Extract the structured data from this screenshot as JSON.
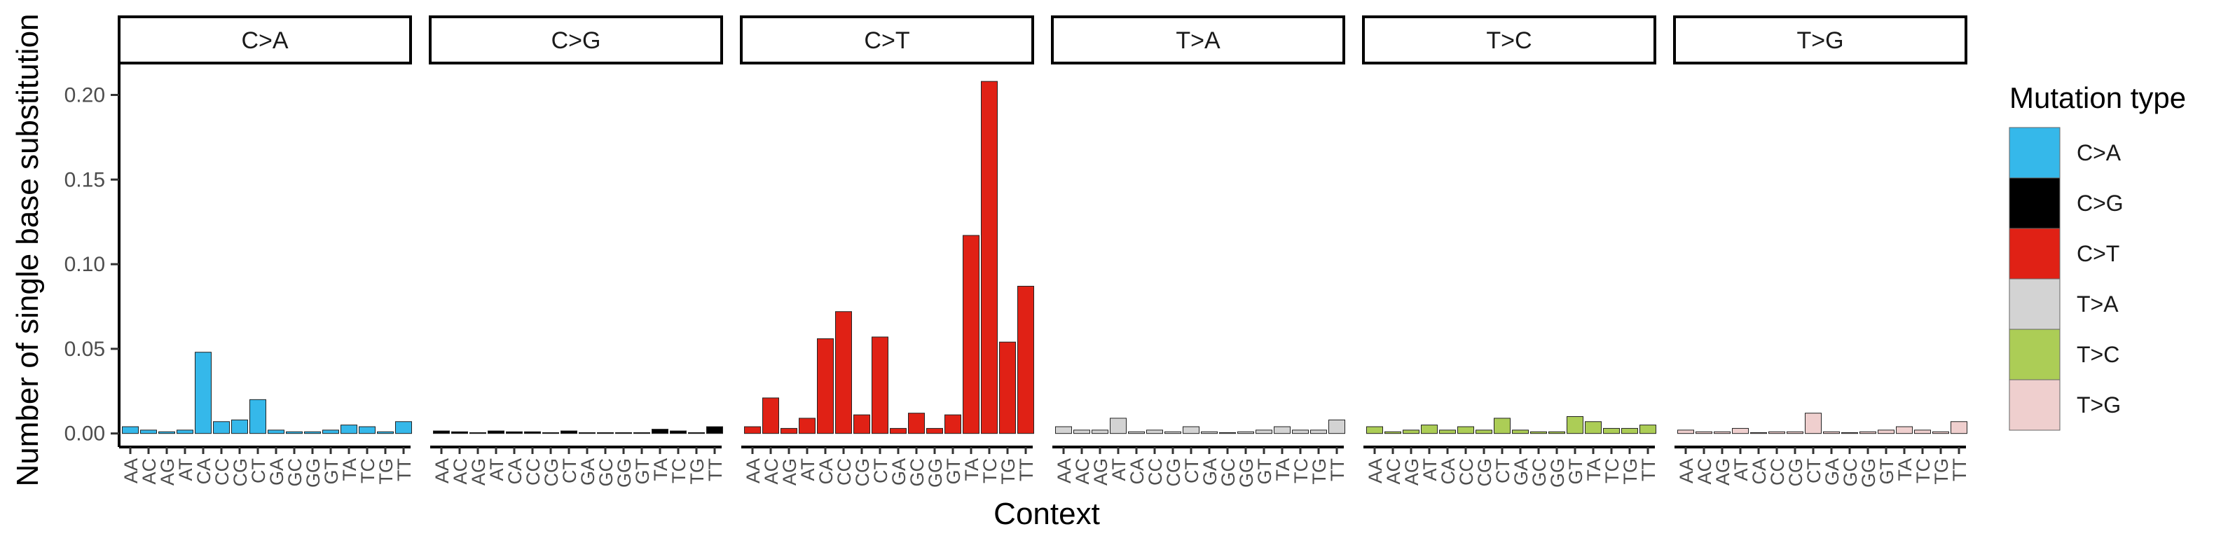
{
  "chart_data": {
    "type": "bar",
    "facets": [
      "C>A",
      "C>G",
      "C>T",
      "T>A",
      "T>C",
      "T>G"
    ],
    "categories": [
      "AA",
      "AC",
      "AG",
      "AT",
      "CA",
      "CC",
      "CG",
      "CT",
      "GA",
      "GC",
      "GG",
      "GT",
      "TA",
      "TC",
      "TG",
      "TT"
    ],
    "series": [
      {
        "name": "C>A",
        "color": "#35B8EA",
        "values": [
          0.004,
          0.002,
          0.001,
          0.002,
          0.048,
          0.007,
          0.008,
          0.02,
          0.002,
          0.001,
          0.001,
          0.002,
          0.005,
          0.004,
          0.001,
          0.007
        ]
      },
      {
        "name": "C>G",
        "color": "#000000",
        "values": [
          0.0015,
          0.001,
          0.0005,
          0.0015,
          0.001,
          0.001,
          0.0005,
          0.0015,
          0.0005,
          0.0005,
          0.0005,
          0.0005,
          0.0025,
          0.0015,
          0.0005,
          0.004
        ]
      },
      {
        "name": "C>T",
        "color": "#E02115",
        "values": [
          0.004,
          0.021,
          0.003,
          0.009,
          0.056,
          0.072,
          0.011,
          0.057,
          0.003,
          0.012,
          0.003,
          0.011,
          0.117,
          0.208,
          0.054,
          0.087
        ]
      },
      {
        "name": "T>A",
        "color": "#D3D3D3",
        "values": [
          0.004,
          0.002,
          0.002,
          0.009,
          0.001,
          0.002,
          0.001,
          0.004,
          0.001,
          0.0005,
          0.001,
          0.002,
          0.004,
          0.002,
          0.002,
          0.008
        ]
      },
      {
        "name": "T>C",
        "color": "#ACCD56",
        "values": [
          0.004,
          0.001,
          0.002,
          0.005,
          0.002,
          0.004,
          0.002,
          0.009,
          0.002,
          0.001,
          0.001,
          0.01,
          0.007,
          0.003,
          0.003,
          0.005
        ]
      },
      {
        "name": "T>G",
        "color": "#EFCFCE",
        "values": [
          0.002,
          0.001,
          0.001,
          0.003,
          0.0005,
          0.001,
          0.001,
          0.012,
          0.001,
          0.0005,
          0.001,
          0.002,
          0.004,
          0.002,
          0.001,
          0.007
        ]
      }
    ],
    "xlabel": "Context",
    "ylabel": "Number of single base substitution",
    "ylim": [
      -0.008,
      0.218
    ],
    "yticks": [
      0.0,
      0.05,
      0.1,
      0.15,
      0.2
    ],
    "ytick_labels": [
      "0.00",
      "0.05",
      "0.10",
      "0.15",
      "0.20"
    ],
    "legend": {
      "title": "Mutation type",
      "position": "right"
    },
    "grid": false
  }
}
